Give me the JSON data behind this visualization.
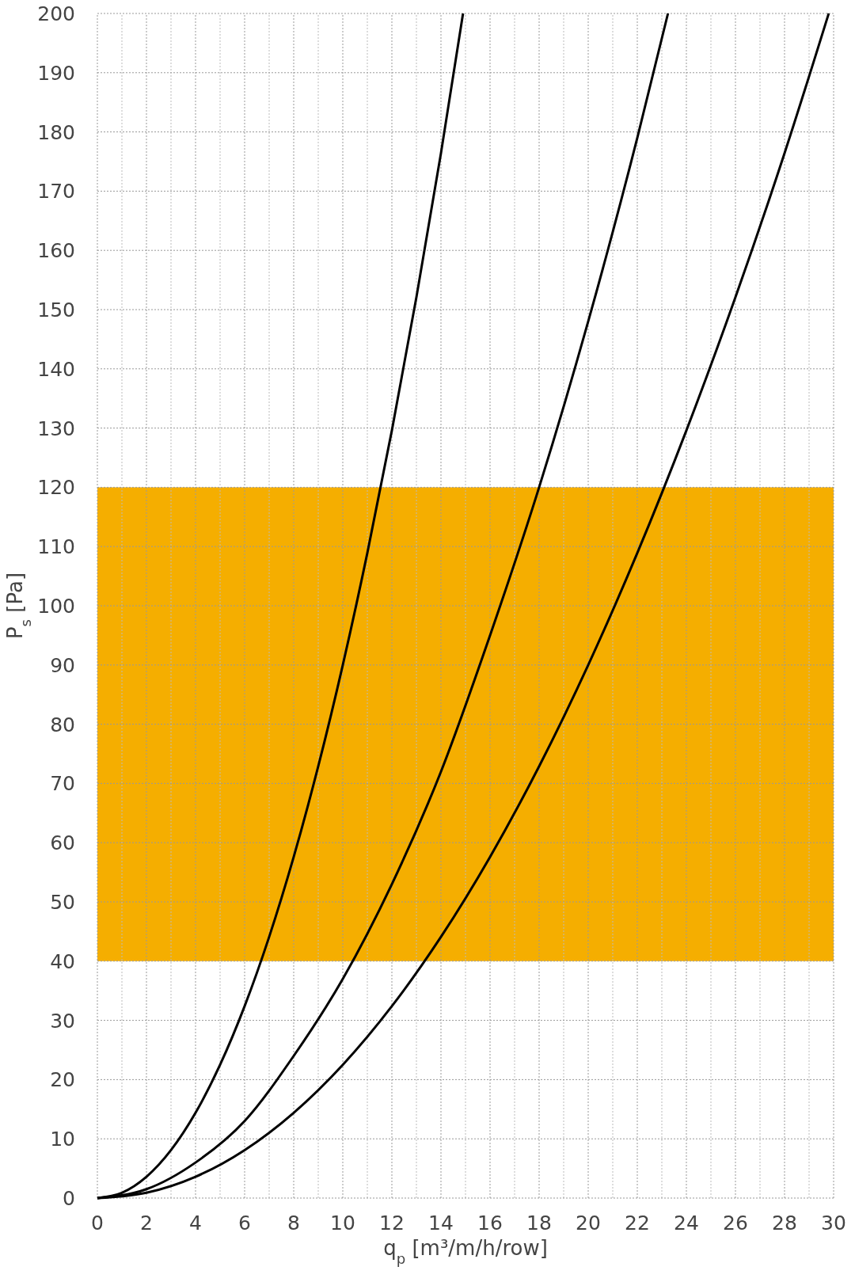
{
  "chart_data": {
    "type": "line",
    "xlabel": "q$_{p}$ [m³/m/h/row]",
    "ylabel": "P$_{s}$ [Pa]",
    "xlim": [
      0,
      30
    ],
    "ylim": [
      0,
      200
    ],
    "xticks": [
      0,
      2,
      4,
      6,
      8,
      10,
      12,
      14,
      16,
      18,
      20,
      22,
      24,
      26,
      28,
      30
    ],
    "yticks": [
      0,
      10,
      20,
      30,
      40,
      50,
      60,
      70,
      80,
      90,
      100,
      110,
      120,
      130,
      140,
      150,
      160,
      170,
      180,
      190,
      200
    ],
    "grid": true,
    "marker": "none",
    "line_style": "solid",
    "bands": [
      {
        "axis": "y",
        "from": 40,
        "to": 120,
        "color": "#f5ae00"
      }
    ],
    "series": [
      {
        "color": "#000000",
        "x": [
          0,
          1,
          2,
          3,
          4,
          5,
          6,
          7,
          8,
          9,
          10,
          11,
          12,
          13,
          14,
          14.9
        ],
        "values": [
          0,
          0.9,
          3.6,
          8.1,
          14.4,
          22.5,
          32.4,
          44.1,
          57.6,
          72.9,
          90,
          108.9,
          129.6,
          152.1,
          176.4,
          200
        ]
      },
      {
        "color": "#000000",
        "x": [
          0,
          2,
          4,
          6,
          8,
          10,
          12,
          14,
          16,
          18,
          20,
          22,
          23.25
        ],
        "values": [
          0,
          1.5,
          6,
          13,
          24,
          37,
          53,
          72,
          95,
          120,
          148,
          179,
          200
        ]
      },
      {
        "color": "#000000",
        "x": [
          0,
          2,
          4,
          6,
          8,
          10,
          12,
          14,
          16,
          18,
          20,
          22,
          24,
          26,
          28,
          29.8
        ],
        "values": [
          0,
          0.9,
          3.6,
          8.1,
          14.4,
          22.5,
          32.4,
          44.1,
          57.6,
          72.9,
          90,
          108.9,
          129.6,
          152.1,
          176.4,
          200
        ]
      }
    ]
  }
}
